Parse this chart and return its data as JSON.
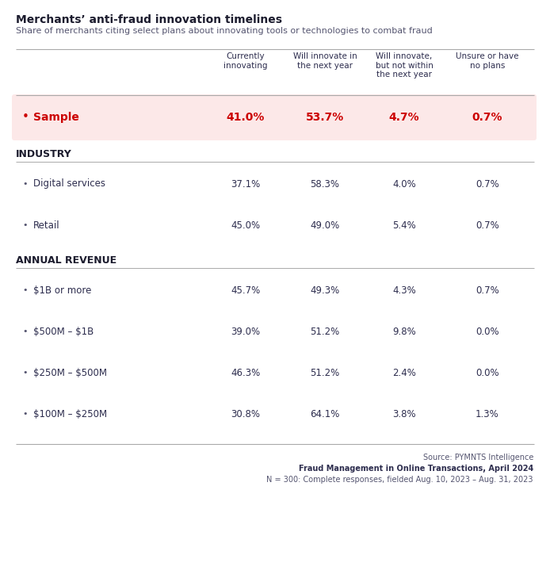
{
  "title": "Merchants’ anti-fraud innovation timelines",
  "subtitle": "Share of merchants citing select plans about innovating tools or technologies to combat fraud",
  "col_headers": [
    "Currently\ninnovating",
    "Will innovate in\nthe next year",
    "Will innovate,\nbut not within\nthe next year",
    "Unsure or have\nno plans"
  ],
  "sample_row": {
    "label": "Sample",
    "values": [
      "41.0%",
      "53.7%",
      "4.7%",
      "0.7%"
    ],
    "highlight": true
  },
  "sections": [
    {
      "section_label": "INDUSTRY",
      "rows": [
        {
          "label": "Digital services",
          "values": [
            "37.1%",
            "58.3%",
            "4.0%",
            "0.7%"
          ]
        },
        {
          "label": "Retail",
          "values": [
            "45.0%",
            "49.0%",
            "5.4%",
            "0.7%"
          ]
        }
      ]
    },
    {
      "section_label": "ANNUAL REVENUE",
      "rows": [
        {
          "label": "$1B or more",
          "values": [
            "45.7%",
            "49.3%",
            "4.3%",
            "0.7%"
          ]
        },
        {
          "label": "$500M – $1B",
          "values": [
            "39.0%",
            "51.2%",
            "9.8%",
            "0.0%"
          ]
        },
        {
          "label": "$250M – $500M",
          "values": [
            "46.3%",
            "51.2%",
            "2.4%",
            "0.0%"
          ]
        },
        {
          "label": "$100M – $250M",
          "values": [
            "30.8%",
            "64.1%",
            "3.8%",
            "1.3%"
          ]
        }
      ]
    }
  ],
  "footer_lines": [
    "Source: PYMNTS Intelligence",
    "Fraud Management in Online Transactions, April 2024",
    "N = 300: Complete responses, fielded Aug. 10, 2023 – Aug. 31, 2023"
  ],
  "colors": {
    "title": "#1c1c2e",
    "subtitle": "#555570",
    "header_text": "#2d2d4e",
    "sample_text": "#cc0000",
    "sample_bg": "#fce8e8",
    "section_label": "#1c1c2e",
    "row_label": "#2d2d4e",
    "row_value": "#2d2d4e",
    "line": "#aaaaaa",
    "footer": "#555570",
    "footer_bold": "#2d2d4e",
    "bullet_red": "#cc0000",
    "bullet_dark": "#555570",
    "background": "#ffffff"
  },
  "figsize": [
    6.94,
    7.34
  ],
  "dpi": 100
}
